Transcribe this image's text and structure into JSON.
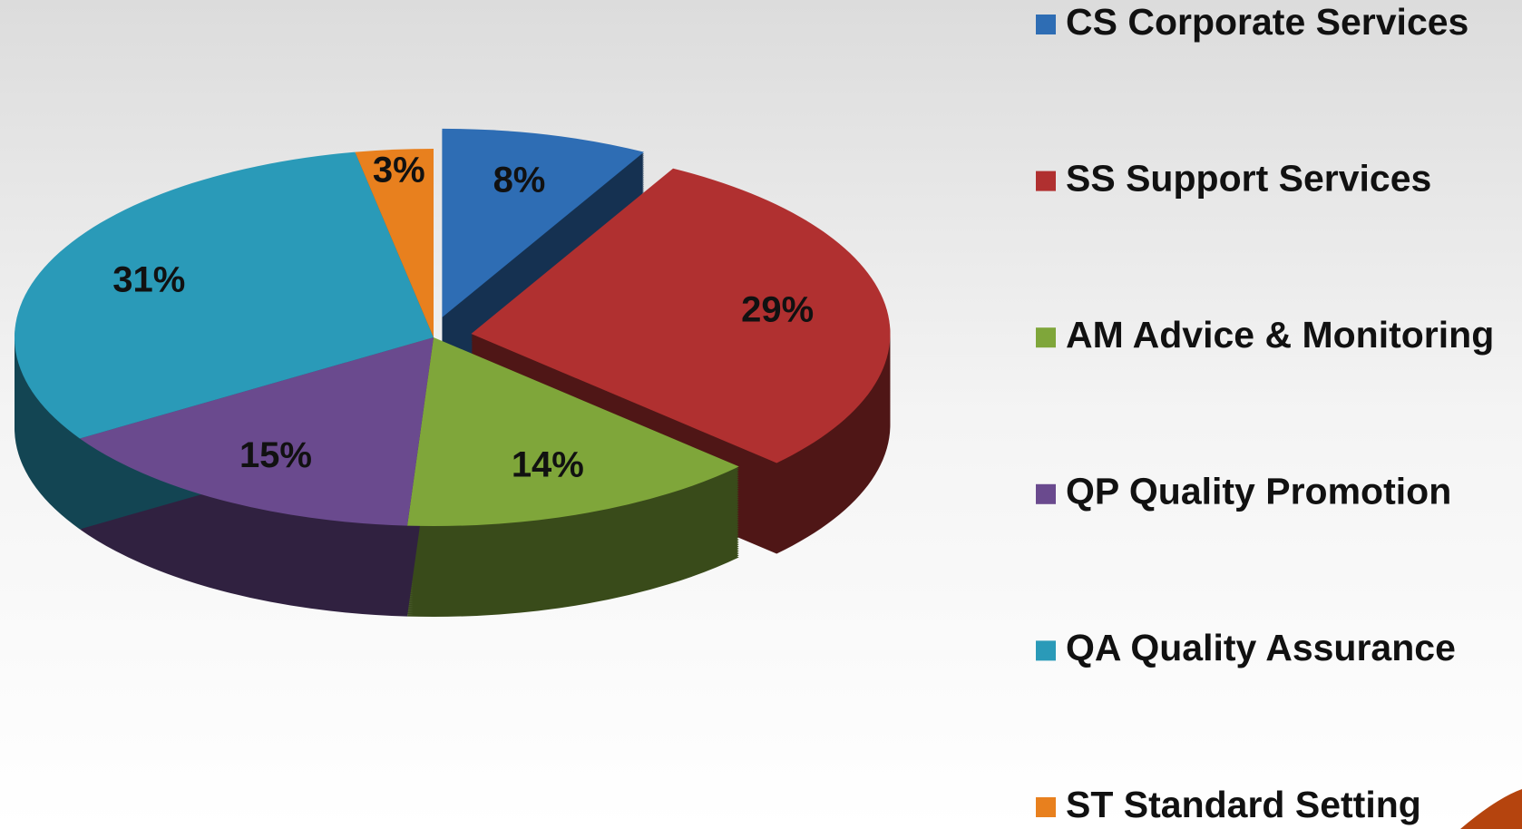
{
  "chart_data": {
    "type": "pie",
    "categories": [
      "CS Corporate Services",
      "SS Support Services",
      "AM Advice & Monitoring",
      "QP Quality Promotion",
      "QA Quality Assurance",
      "ST Standard Setting"
    ],
    "values": [
      8,
      29,
      14,
      15,
      31,
      3
    ],
    "value_labels": [
      "8%",
      "29%",
      "14%",
      "15%",
      "31%",
      "3%"
    ],
    "colors": [
      "#2e6db4",
      "#b03030",
      "#7fa63a",
      "#6a4a8e",
      "#2a9ab8",
      "#e8801e"
    ],
    "legend": "right"
  }
}
